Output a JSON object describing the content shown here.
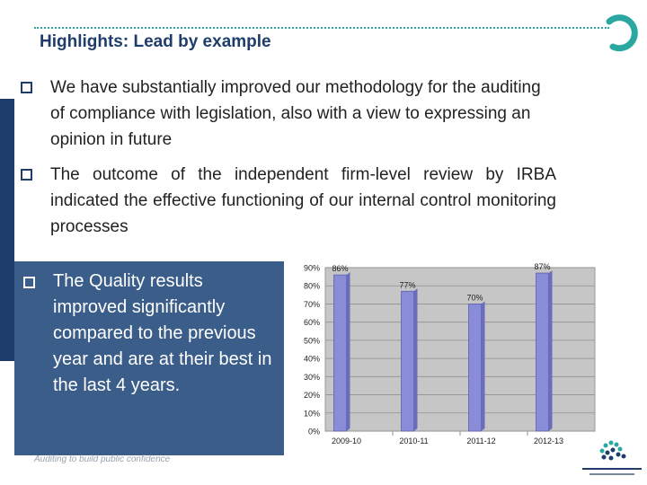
{
  "slide": {
    "title": "Highlights: Lead by example",
    "bullets": [
      "We have substantially improved our methodology for the auditing of compliance with legislation, also with a view to expressing an opinion in future",
      "The outcome of the independent firm-level review by IRBA indicated the effective functioning of our internal control monitoring processes"
    ],
    "highlight_bullet": "The Quality results improved significantly compared to the previous year and are at their best in the last 4 years.",
    "footer": "Auditing to build public confidence"
  },
  "colors": {
    "brand_navy": "#1f3d6b",
    "brand_teal": "#2aa7a0",
    "highlight_box": "#3b5d8a",
    "bar_fill": "#8a8cd8",
    "plot_bg": "#c6c6c6"
  },
  "icons": [
    "checkbox-bullet-icon",
    "brand-ring-icon",
    "auditor-general-logo"
  ],
  "chart_data": {
    "type": "bar",
    "categories": [
      "2009-10",
      "2010-11",
      "2011-12",
      "2012-13"
    ],
    "values": [
      86,
      77,
      70,
      87
    ],
    "data_labels": [
      "86%",
      "77%",
      "70%",
      "87%"
    ],
    "ylim": [
      0,
      90
    ],
    "yticks": [
      "0%",
      "10%",
      "20%",
      "30%",
      "40%",
      "50%",
      "60%",
      "70%",
      "80%",
      "90%"
    ],
    "grid": true,
    "legend": "none"
  }
}
